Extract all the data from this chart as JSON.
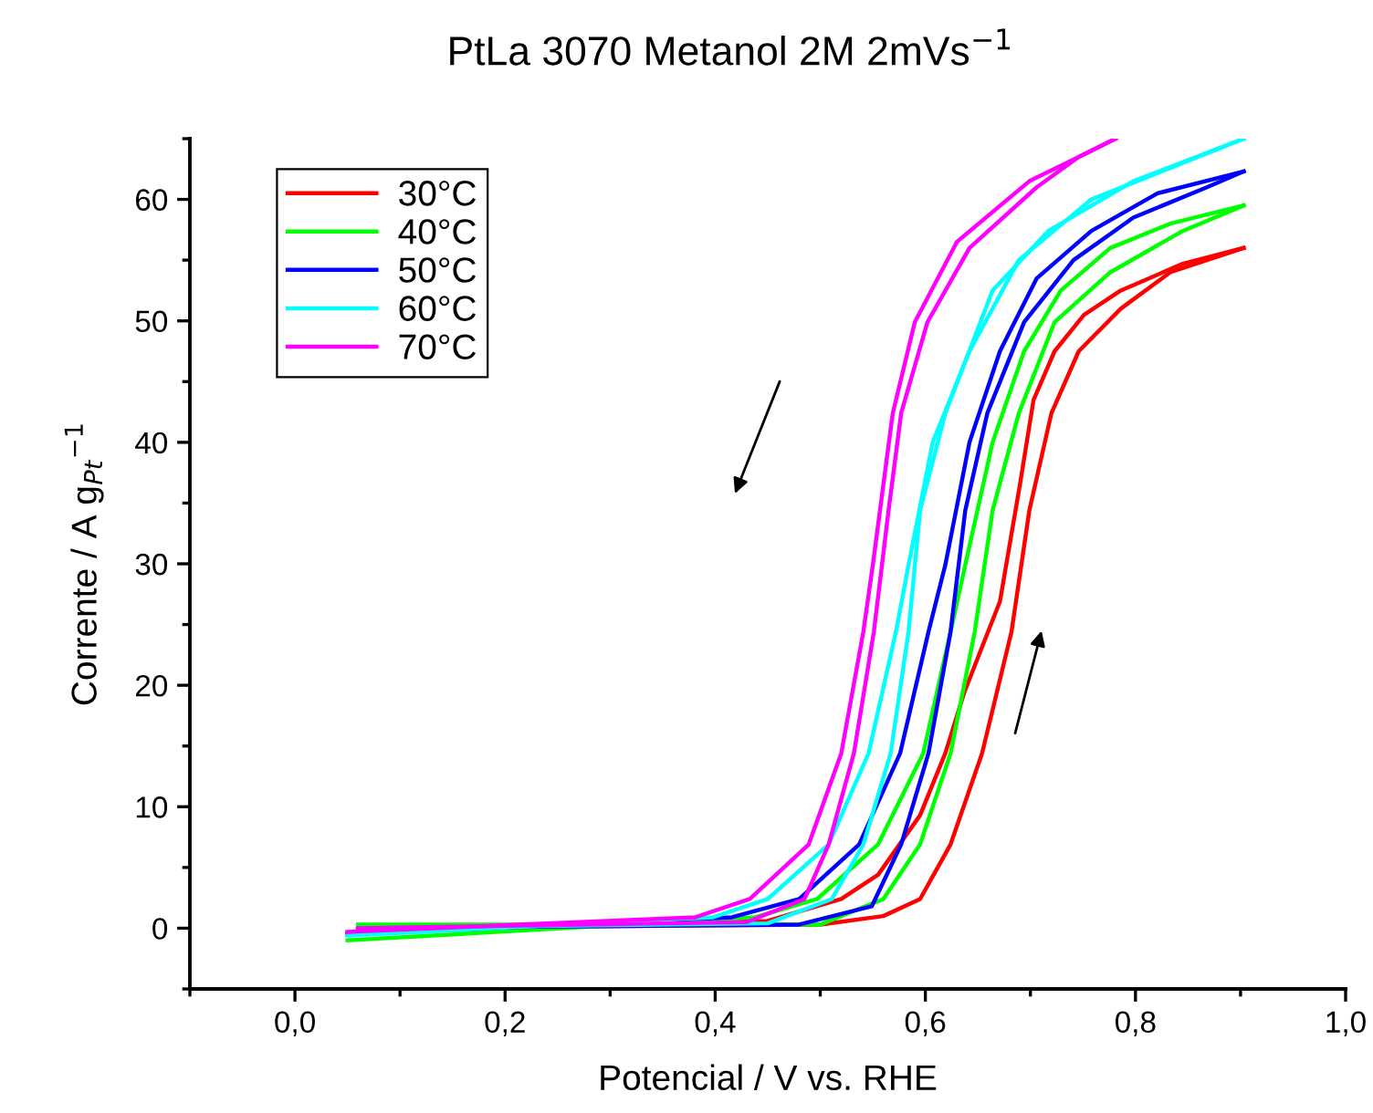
{
  "chart_data": {
    "type": "line",
    "title": "PtLa 3070 Metanol 2M 2mVs$^{−1}$",
    "xlabel": "Potencial / V vs. RHE",
    "ylabel": "Corrente / A g$_{Pt}$$^{−1}$",
    "xlim": [
      -0.1,
      1.0
    ],
    "ylim": [
      -5,
      65
    ],
    "xticks": [
      {
        "value": 0.0,
        "label": "0,0"
      },
      {
        "value": 0.2,
        "label": "0,2"
      },
      {
        "value": 0.4,
        "label": "0,4"
      },
      {
        "value": 0.6,
        "label": "0,6"
      },
      {
        "value": 0.8,
        "label": "0,8"
      },
      {
        "value": 1.0,
        "label": "1,0"
      }
    ],
    "yticks": [
      0,
      10,
      20,
      30,
      40,
      50,
      60
    ],
    "grid": false,
    "legend": "top left",
    "marker": "none",
    "line_style": "solid",
    "series": [
      {
        "name": "30°C",
        "color": "#ff0000",
        "x": [
          0.06,
          0.5,
          0.56,
          0.595,
          0.624,
          0.654,
          0.682,
          0.699,
          0.72,
          0.746,
          0.786,
          0.833,
          0.903
        ],
        "values": [
          0,
          0.3,
          1,
          2.4,
          6.9,
          14.4,
          24.4,
          34.4,
          42.4,
          47.5,
          51,
          54,
          56
        ]
      },
      {
        "color": "#ff0000",
        "x": [
          0.05,
          0.45,
          0.52,
          0.555,
          0.595,
          0.619,
          0.637,
          0.671,
          0.69,
          0.703,
          0.723,
          0.751,
          0.786,
          0.845,
          0.903
        ],
        "values": [
          -0.4,
          0.6,
          2.4,
          4.4,
          9.3,
          14.4,
          19.4,
          26.9,
          36.5,
          43.5,
          47.5,
          50.5,
          52.5,
          54.7,
          56
        ]
      },
      {
        "name": "40°C",
        "color": "#00ff00",
        "x": [
          0.06,
          0.5,
          0.56,
          0.595,
          0.624,
          0.647,
          0.664,
          0.689,
          0.723,
          0.776,
          0.845,
          0.903
        ],
        "values": [
          0.3,
          0.3,
          2.4,
          6.9,
          14.4,
          24.4,
          34.4,
          42.4,
          49.9,
          54,
          57.4,
          59.5
        ]
      },
      {
        "color": "#00ff00",
        "x": [
          0.05,
          0.438,
          0.497,
          0.555,
          0.598,
          0.624,
          0.638,
          0.664,
          0.694,
          0.729,
          0.776,
          0.833,
          0.903
        ],
        "values": [
          -1,
          0.9,
          2.4,
          6.9,
          14.4,
          24.4,
          29.9,
          40,
          47.5,
          52.5,
          56,
          58,
          59.5
        ]
      },
      {
        "name": "50°C",
        "color": "#0000ff",
        "x": [
          0.06,
          0.48,
          0.549,
          0.577,
          0.603,
          0.624,
          0.638,
          0.659,
          0.694,
          0.741,
          0.798,
          0.868,
          0.903
        ],
        "values": [
          0,
          0.3,
          1.8,
          6.9,
          14.4,
          24.4,
          34.4,
          42.4,
          49.9,
          55,
          58.5,
          61,
          62.3
        ]
      },
      {
        "color": "#0000ff",
        "x": [
          0.05,
          0.416,
          0.48,
          0.537,
          0.576,
          0.603,
          0.619,
          0.642,
          0.671,
          0.706,
          0.758,
          0.821,
          0.903
        ],
        "values": [
          -0.5,
          0.9,
          2.4,
          6.9,
          14.4,
          24.4,
          29.9,
          40,
          47.5,
          53.5,
          57.4,
          60.5,
          62.3
        ]
      },
      {
        "name": "60°C",
        "color": "#00ffff",
        "x": [
          0.06,
          0.45,
          0.511,
          0.541,
          0.567,
          0.584,
          0.595,
          0.619,
          0.664,
          0.717,
          0.798,
          0.903
        ],
        "values": [
          0,
          0.4,
          2.4,
          6.9,
          14.4,
          24.4,
          34.4,
          42.4,
          52.5,
          57.4,
          61.5,
          65
        ]
      },
      {
        "color": "#00ffff",
        "x": [
          0.05,
          0.398,
          0.45,
          0.508,
          0.546,
          0.572,
          0.584,
          0.607,
          0.642,
          0.689,
          0.758,
          0.845,
          0.903
        ],
        "values": [
          -0.6,
          0.9,
          2.4,
          6.9,
          14.4,
          24.4,
          29.9,
          40,
          47.5,
          55,
          60,
          63,
          65
        ]
      },
      {
        "name": "70°C",
        "color": "#ff00ff",
        "x": [
          0.06,
          0.43,
          0.485,
          0.508,
          0.532,
          0.551,
          0.565,
          0.577,
          0.602,
          0.642,
          0.706,
          0.746,
          0.781
        ],
        "values": [
          0,
          0.5,
          2.4,
          6.9,
          14.4,
          24.4,
          34.4,
          42.4,
          49.9,
          56,
          61,
          63.5,
          65
        ]
      },
      {
        "color": "#ff00ff",
        "x": [
          0.05,
          0.381,
          0.433,
          0.489,
          0.52,
          0.541,
          0.55,
          0.569,
          0.59,
          0.63,
          0.699,
          0.758,
          0.781
        ],
        "values": [
          -0.3,
          0.9,
          2.4,
          6.9,
          14.4,
          24.4,
          29.9,
          42.4,
          49.9,
          56.5,
          61.5,
          64,
          65
        ]
      }
    ]
  }
}
